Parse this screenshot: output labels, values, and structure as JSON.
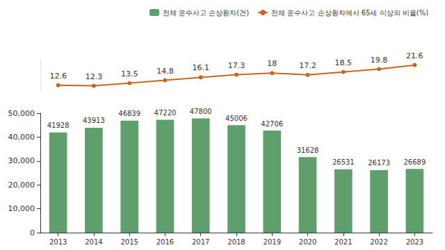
{
  "chart_data": {
    "type": "bar",
    "categories": [
      "2013",
      "2014",
      "2015",
      "2016",
      "2017",
      "2018",
      "2019",
      "2020",
      "2021",
      "2022",
      "2023"
    ],
    "series": [
      {
        "name": "전체 운수사고 손상환자(건)",
        "type": "bar",
        "color": "#5e9f6c",
        "values": [
          41928,
          43913,
          46839,
          47220,
          47800,
          45006,
          42706,
          31628,
          26531,
          26173,
          26689
        ]
      },
      {
        "name": "전체 운수사고 손상환자에서 65세 이상의 비율(%)",
        "type": "line",
        "color": "#c9651d",
        "axis": "y2",
        "marker": "circle",
        "values": [
          12.6,
          12.3,
          13.5,
          14.8,
          16.1,
          17.3,
          18.0,
          17.2,
          18.5,
          19.8,
          21.6
        ]
      }
    ],
    "ylim": [
      0,
      50000
    ],
    "yticks": [
      0,
      {
        "value": 10000,
        "label": "10,000"
      },
      {
        "value": 20000,
        "label": "20,000"
      },
      {
        "value": 30000,
        "label": "30,000"
      },
      {
        "value": 40000,
        "label": "40,000"
      },
      {
        "value": 50000,
        "label": "50,000"
      }
    ],
    "y2lim": [
      10,
      24
    ],
    "y2ticks": [],
    "data_labels": true,
    "tick_labels": "y",
    "grid": false,
    "legend": "top"
  }
}
